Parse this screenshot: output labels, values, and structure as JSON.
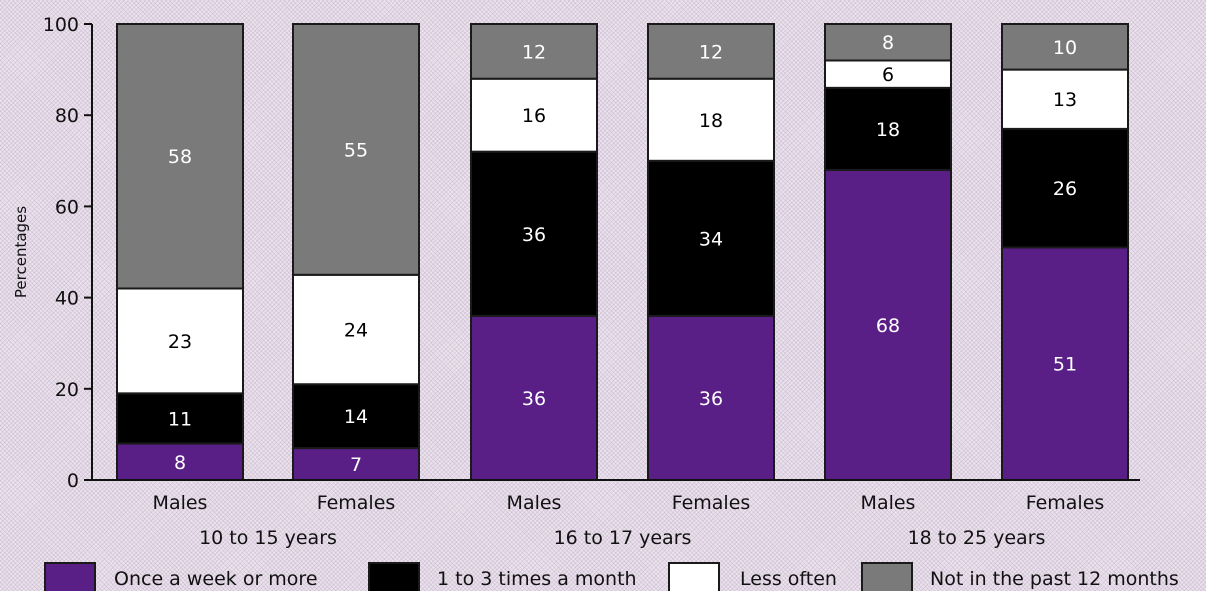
{
  "chart_data": {
    "type": "bar",
    "stacked": true,
    "ylabel": "Percentages",
    "xlabel": "",
    "ylim": [
      0,
      100
    ],
    "yticks": [
      0,
      20,
      40,
      60,
      80,
      100
    ],
    "grid": false,
    "legend_position": "bottom",
    "categories": [
      "Males",
      "Females",
      "Males",
      "Females",
      "Males",
      "Females"
    ],
    "groups": [
      {
        "label": "10 to 15 years",
        "categories": [
          0,
          1
        ]
      },
      {
        "label": "16 to 17 years",
        "categories": [
          2,
          3
        ]
      },
      {
        "label": "18 to 25 years",
        "categories": [
          4,
          5
        ]
      }
    ],
    "series": [
      {
        "name": "Once a week or more",
        "color": "#5a1f86",
        "text_color": "#ffffff",
        "values": [
          8,
          7,
          36,
          36,
          68,
          51
        ]
      },
      {
        "name": "1 to 3 times a month",
        "color": "#000000",
        "text_color": "#ffffff",
        "values": [
          11,
          14,
          36,
          34,
          18,
          26
        ]
      },
      {
        "name": "Less often",
        "color": "#ffffff",
        "text_color": "#000000",
        "values": [
          23,
          24,
          16,
          18,
          6,
          13
        ]
      },
      {
        "name": "Not in the past 12 months",
        "color": "#7a7a7a",
        "text_color": "#ffffff",
        "values": [
          58,
          55,
          12,
          12,
          8,
          10
        ]
      }
    ]
  }
}
